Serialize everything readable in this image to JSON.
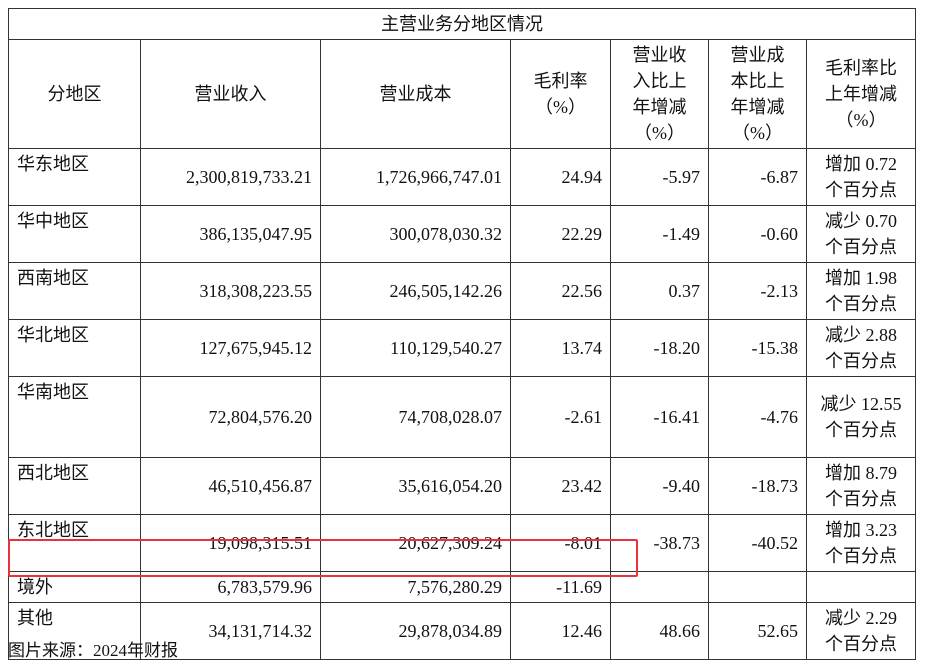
{
  "table": {
    "title": "主营业务分地区情况",
    "header": [
      "分地区",
      "营业收入",
      "营业成本",
      "毛利率（%）",
      "营业收入比上年增减（%）",
      "营业成本比上年增减（%）",
      "毛利率比上年增减（%）"
    ],
    "rows": [
      [
        "华东地区",
        "2,300,819,733.21",
        "1,726,966,747.01",
        "24.94",
        "-5.97",
        "-6.87",
        "增加 0.72 个百分点"
      ],
      [
        "华中地区",
        "386,135,047.95",
        "300,078,030.32",
        "22.29",
        "-1.49",
        "-0.60",
        "减少 0.70 个百分点"
      ],
      [
        "西南地区",
        "318,308,223.55",
        "246,505,142.26",
        "22.56",
        "0.37",
        "-2.13",
        "增加 1.98 个百分点"
      ],
      [
        "华北地区",
        "127,675,945.12",
        "110,129,540.27",
        "13.74",
        "-18.20",
        "-15.38",
        "减少 2.88 个百分点"
      ],
      [
        "华南地区",
        "72,804,576.20",
        "74,708,028.07",
        "-2.61",
        "-16.41",
        "-4.76",
        "减少 12.55 个百分点"
      ],
      [
        "西北地区",
        "46,510,456.87",
        "35,616,054.20",
        "23.42",
        "-9.40",
        "-18.73",
        "增加 8.79 个百分点"
      ],
      [
        "东北地区",
        "19,098,315.51",
        "20,627,309.24",
        "-8.01",
        "-38.73",
        "-40.52",
        "增加 3.23 个百分点"
      ],
      [
        "境外",
        "6,783,579.96",
        "7,576,280.29",
        "-11.69"
      ],
      [
        "其他",
        "34,131,714.32",
        "29,878,034.89",
        "12.46",
        "48.66",
        "52.65",
        "减少 2.29 个百分点"
      ]
    ]
  },
  "footer": {
    "source": "图片来源：2024年财报"
  }
}
